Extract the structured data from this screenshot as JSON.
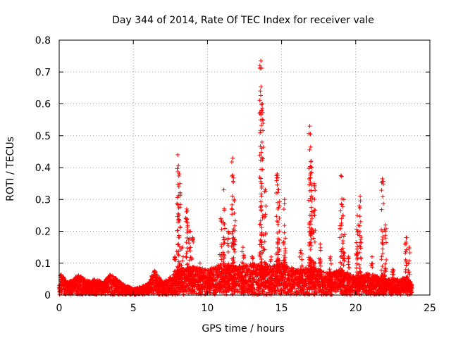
{
  "chart_data": {
    "type": "scatter",
    "title": "Day 344 of 2014, Rate Of TEC Index for receiver vale",
    "xlabel": "GPS time / hours",
    "ylabel": "ROTI / TECUs",
    "xlim": [
      0,
      25
    ],
    "ylim": [
      0,
      0.8
    ],
    "xticks": [
      0,
      5,
      10,
      15,
      20,
      25
    ],
    "yticks": [
      0,
      0.1,
      0.2,
      0.3,
      0.4,
      0.5,
      0.6,
      0.7,
      0.8
    ],
    "xtick_labels": [
      "0",
      "5",
      "10",
      "15",
      "20",
      "25"
    ],
    "ytick_labels": [
      "0",
      "0.1",
      "0.2",
      "0.3",
      "0.4",
      "0.5",
      "0.6",
      "0.7",
      "0.8"
    ],
    "grid": true,
    "marker": "+",
    "color": "#ff0000",
    "baseline_envelope": [
      {
        "x": 0.0,
        "y": 0.03
      },
      {
        "x": 0.1,
        "y": 0.075
      },
      {
        "x": 0.5,
        "y": 0.04
      },
      {
        "x": 1.0,
        "y": 0.05
      },
      {
        "x": 1.2,
        "y": 0.065
      },
      {
        "x": 2.0,
        "y": 0.045
      },
      {
        "x": 2.5,
        "y": 0.05
      },
      {
        "x": 3.0,
        "y": 0.04
      },
      {
        "x": 3.5,
        "y": 0.07
      },
      {
        "x": 4.0,
        "y": 0.045
      },
      {
        "x": 4.5,
        "y": 0.03
      },
      {
        "x": 5.0,
        "y": 0.02
      },
      {
        "x": 5.5,
        "y": 0.025
      },
      {
        "x": 6.0,
        "y": 0.035
      },
      {
        "x": 6.4,
        "y": 0.08
      },
      {
        "x": 7.0,
        "y": 0.04
      },
      {
        "x": 7.6,
        "y": 0.06
      },
      {
        "x": 8.0,
        "y": 0.08
      },
      {
        "x": 9.0,
        "y": 0.09
      },
      {
        "x": 10.0,
        "y": 0.08
      },
      {
        "x": 11.0,
        "y": 0.1
      },
      {
        "x": 12.0,
        "y": 0.09
      },
      {
        "x": 13.0,
        "y": 0.1
      },
      {
        "x": 14.0,
        "y": 0.09
      },
      {
        "x": 15.0,
        "y": 0.1
      },
      {
        "x": 16.0,
        "y": 0.08
      },
      {
        "x": 17.0,
        "y": 0.09
      },
      {
        "x": 18.0,
        "y": 0.07
      },
      {
        "x": 19.0,
        "y": 0.08
      },
      {
        "x": 20.0,
        "y": 0.06
      },
      {
        "x": 21.0,
        "y": 0.07
      },
      {
        "x": 22.0,
        "y": 0.05
      },
      {
        "x": 23.0,
        "y": 0.05
      },
      {
        "x": 23.5,
        "y": 0.06
      },
      {
        "x": 23.8,
        "y": 0.03
      }
    ],
    "spikes": [
      {
        "x": 7.8,
        "peak": 0.12
      },
      {
        "x": 8.0,
        "peak": 0.44
      },
      {
        "x": 8.1,
        "peak": 0.38
      },
      {
        "x": 8.3,
        "peak": 0.15
      },
      {
        "x": 8.6,
        "peak": 0.27
      },
      {
        "x": 8.8,
        "peak": 0.2
      },
      {
        "x": 9.0,
        "peak": 0.18
      },
      {
        "x": 9.5,
        "peak": 0.1
      },
      {
        "x": 10.2,
        "peak": 0.08
      },
      {
        "x": 10.9,
        "peak": 0.24
      },
      {
        "x": 11.1,
        "peak": 0.33
      },
      {
        "x": 11.4,
        "peak": 0.2
      },
      {
        "x": 11.7,
        "peak": 0.43
      },
      {
        "x": 11.8,
        "peak": 0.3
      },
      {
        "x": 12.4,
        "peak": 0.15
      },
      {
        "x": 13.0,
        "peak": 0.12
      },
      {
        "x": 13.6,
        "peak": 0.735
      },
      {
        "x": 13.7,
        "peak": 0.6
      },
      {
        "x": 13.9,
        "peak": 0.33
      },
      {
        "x": 14.3,
        "peak": 0.12
      },
      {
        "x": 14.7,
        "peak": 0.38
      },
      {
        "x": 14.8,
        "peak": 0.33
      },
      {
        "x": 15.2,
        "peak": 0.3
      },
      {
        "x": 16.3,
        "peak": 0.14
      },
      {
        "x": 16.9,
        "peak": 0.53
      },
      {
        "x": 17.0,
        "peak": 0.42
      },
      {
        "x": 17.2,
        "peak": 0.35
      },
      {
        "x": 17.6,
        "peak": 0.16
      },
      {
        "x": 18.3,
        "peak": 0.12
      },
      {
        "x": 19.0,
        "peak": 0.375
      },
      {
        "x": 19.2,
        "peak": 0.3
      },
      {
        "x": 19.5,
        "peak": 0.12
      },
      {
        "x": 20.1,
        "peak": 0.25
      },
      {
        "x": 20.3,
        "peak": 0.31
      },
      {
        "x": 21.1,
        "peak": 0.12
      },
      {
        "x": 21.8,
        "peak": 0.365
      },
      {
        "x": 22.0,
        "peak": 0.22
      },
      {
        "x": 22.5,
        "peak": 0.08
      },
      {
        "x": 23.4,
        "peak": 0.18
      },
      {
        "x": 23.6,
        "peak": 0.15
      }
    ]
  }
}
